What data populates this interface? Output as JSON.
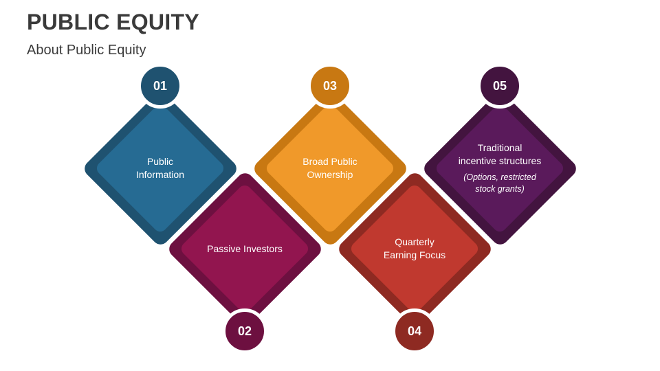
{
  "header": {
    "title": "PUBLIC EQUITY",
    "subtitle": "About Public Equity"
  },
  "items": [
    {
      "number": "01",
      "label": "Public\nInformation",
      "note": "",
      "outer_color": "#1f5270",
      "inner_color": "#266b93"
    },
    {
      "number": "02",
      "label": "Passive Investors",
      "note": "",
      "outer_color": "#6d1040",
      "inner_color": "#92154f"
    },
    {
      "number": "03",
      "label": "Broad Public\nOwnership",
      "note": "",
      "outer_color": "#c87812",
      "inner_color": "#f0992a"
    },
    {
      "number": "04",
      "label": "Quarterly\nEarning Focus",
      "note": "",
      "outer_color": "#8e2a22",
      "inner_color": "#c0392f"
    },
    {
      "number": "05",
      "label": "Traditional\nincentive structures",
      "note": "(Options, restricted\nstock grants)",
      "outer_color": "#43143f",
      "inner_color": "#5a1a5b"
    }
  ]
}
